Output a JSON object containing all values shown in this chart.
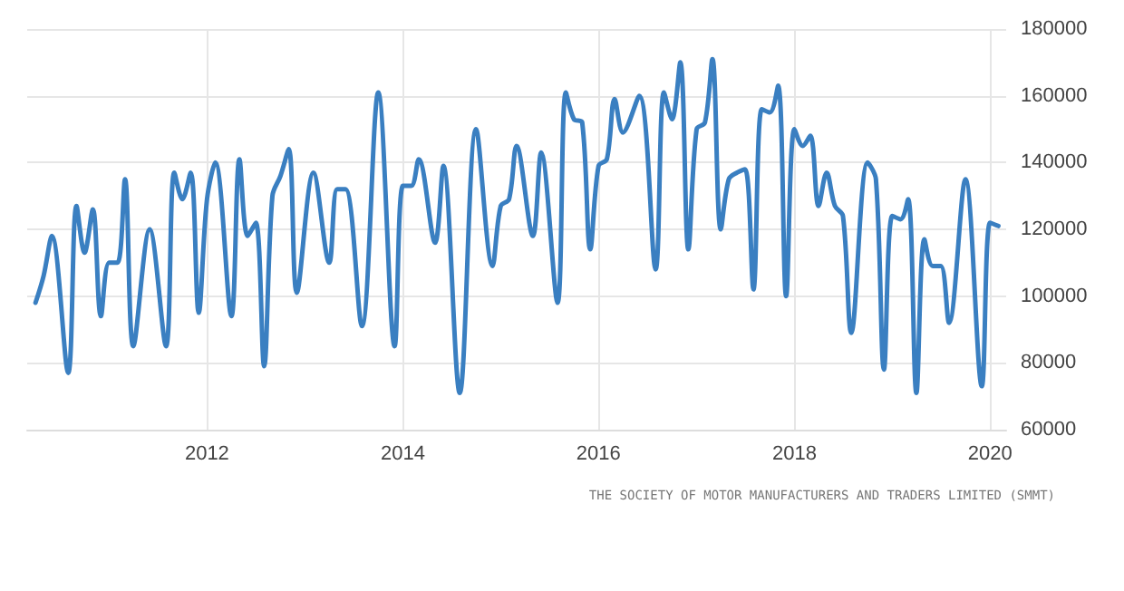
{
  "chart_data": {
    "type": "line",
    "annotations": [
      "THE SOCIETY OF MOTOR MANUFACTURERS AND TRADERS LIMITED (SMMT)"
    ],
    "x": [
      "2010-04",
      "2010-05",
      "2010-06",
      "2010-08",
      "2010-09",
      "2010-10",
      "2010-11",
      "2010-12",
      "2011-01",
      "2011-02",
      "2011-03",
      "2011-04",
      "2011-06",
      "2011-08",
      "2011-09",
      "2011-10",
      "2011-11",
      "2011-12",
      "2012-01",
      "2012-02",
      "2012-04",
      "2012-05",
      "2012-06",
      "2012-07",
      "2012-08",
      "2012-09",
      "2012-10",
      "2012-11",
      "2012-12",
      "2013-02",
      "2013-04",
      "2013-05",
      "2013-06",
      "2013-08",
      "2013-10",
      "2013-12",
      "2014-01",
      "2014-02",
      "2014-03",
      "2014-05",
      "2014-06",
      "2014-08",
      "2014-10",
      "2014-12",
      "2015-01",
      "2015-02",
      "2015-03",
      "2015-05",
      "2015-06",
      "2015-08",
      "2015-09",
      "2015-10",
      "2015-11",
      "2015-12",
      "2016-01",
      "2016-02",
      "2016-03",
      "2016-04",
      "2016-06",
      "2016-08",
      "2016-09",
      "2016-10",
      "2016-11",
      "2016-12",
      "2017-01",
      "2017-02",
      "2017-03",
      "2017-04",
      "2017-05",
      "2017-06",
      "2017-07",
      "2017-08",
      "2017-09",
      "2017-10",
      "2017-11",
      "2017-12",
      "2018-01",
      "2018-02",
      "2018-03",
      "2018-04",
      "2018-05",
      "2018-06",
      "2018-07",
      "2018-08",
      "2018-10",
      "2018-11",
      "2018-12",
      "2019-01",
      "2019-02",
      "2019-03",
      "2019-04",
      "2019-05",
      "2019-06",
      "2019-07",
      "2019-08",
      "2019-10",
      "2019-12",
      "2020-01",
      "2020-02"
    ],
    "series": [
      {
        "color": "#3a7fc1",
        "values": [
          98000,
          106000,
          118000,
          77000,
          127000,
          113000,
          126000,
          94000,
          110000,
          110000,
          135000,
          85000,
          120000,
          85000,
          137000,
          129000,
          137000,
          95000,
          129000,
          140000,
          94000,
          141000,
          118000,
          122000,
          79000,
          130000,
          136000,
          144000,
          101000,
          137000,
          110000,
          132000,
          132000,
          91000,
          161000,
          85000,
          133000,
          133000,
          141000,
          116000,
          139000,
          71000,
          150000,
          109000,
          127000,
          129000,
          145000,
          118000,
          143000,
          98000,
          161000,
          153000,
          152000,
          114000,
          139000,
          141000,
          159000,
          149000,
          160000,
          108000,
          161000,
          153000,
          170000,
          114000,
          150000,
          152000,
          171000,
          120000,
          135000,
          137000,
          138000,
          102000,
          156000,
          155000,
          163000,
          100000,
          150000,
          145000,
          148000,
          127000,
          137000,
          127000,
          124000,
          89000,
          140000,
          135000,
          78000,
          124000,
          123000,
          129000,
          71000,
          117000,
          109000,
          109000,
          92000,
          135000,
          73000,
          122000,
          121000
        ]
      }
    ],
    "xlim": [
      "2010-03",
      "2020-03"
    ],
    "xticks": [
      "2012",
      "2014",
      "2016",
      "2018",
      "2020"
    ],
    "ylim": [
      60000,
      180000
    ],
    "yticks": [
      60000,
      80000,
      100000,
      120000,
      140000,
      160000,
      180000
    ],
    "grid": true,
    "line_style": "solid",
    "marker": "none"
  }
}
